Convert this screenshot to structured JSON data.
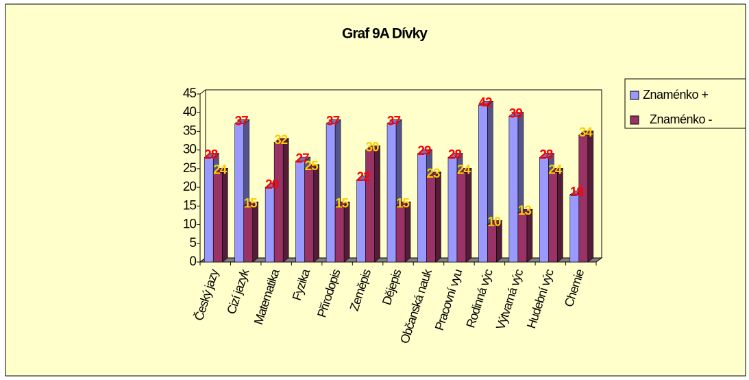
{
  "chart_data": {
    "type": "bar",
    "title": "Graf 9A Dívky",
    "categories": [
      "Český jazy",
      "Cizí jazyk",
      "Matematika",
      "Fyzika",
      "Přírodopis",
      "Zeměpis",
      "Dějepis",
      "Občanská nauk",
      "Pracovní vyu",
      "Rodinná výc",
      "Výtvarná výc",
      "Hudební výc",
      "Chemie"
    ],
    "series": [
      {
        "name": "Znaménko +",
        "color": "#9999ff",
        "label_color": "#ff0000",
        "values": [
          28,
          37,
          20,
          27,
          37,
          22,
          37,
          29,
          28,
          42,
          39,
          28,
          18
        ]
      },
      {
        "name": "Znaménko -",
        "color": "#993366",
        "label_color": "#ffcc00",
        "values": [
          24,
          15,
          32,
          25,
          15,
          30,
          15,
          23,
          24,
          10,
          13,
          24,
          34
        ]
      }
    ],
    "ylim": [
      0,
      45
    ],
    "yticks": [
      0,
      5,
      10,
      15,
      20,
      25,
      30,
      35,
      40,
      45
    ],
    "legend": "right"
  }
}
